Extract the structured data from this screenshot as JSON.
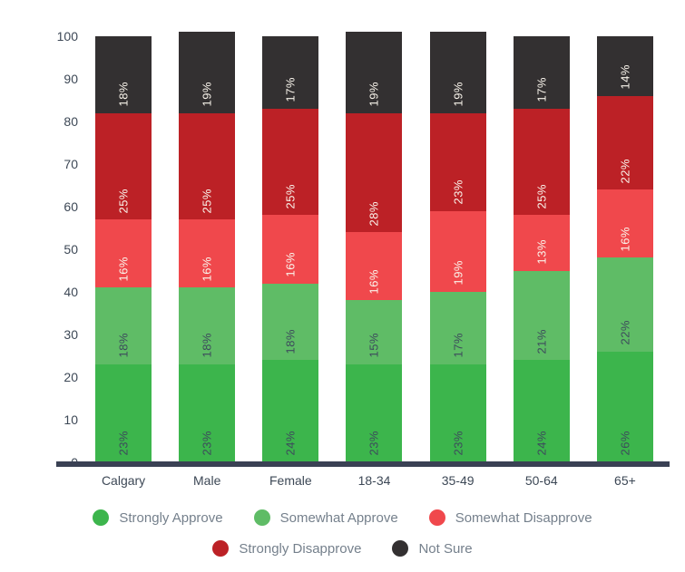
{
  "chart_data": {
    "type": "bar",
    "stacked": true,
    "title": "",
    "xlabel": "",
    "ylabel": "",
    "categories": [
      "Calgary",
      "Male",
      "Female",
      "18-34",
      "35-49",
      "50-64",
      "65+"
    ],
    "series": [
      {
        "name": "Strongly Approve",
        "color": "#3cb54c",
        "label_color": "#3d4b5c",
        "values": [
          23,
          23,
          24,
          23,
          23,
          24,
          26
        ]
      },
      {
        "name": "Somewhat Approve",
        "color": "#5fbc66",
        "label_color": "#3d4b5c",
        "values": [
          18,
          18,
          18,
          15,
          17,
          21,
          22
        ]
      },
      {
        "name": "Somewhat Disapprove",
        "color": "#f0484c",
        "label_color": "#faf5ec",
        "values": [
          16,
          16,
          16,
          16,
          19,
          13,
          16
        ]
      },
      {
        "name": "Strongly Disapprove",
        "color": "#bc2126",
        "label_color": "#faf5ec",
        "values": [
          25,
          25,
          25,
          28,
          23,
          25,
          22
        ]
      },
      {
        "name": "Not Sure",
        "color": "#333031",
        "label_color": "#faf5ec",
        "values": [
          18,
          19,
          17,
          19,
          19,
          17,
          14
        ]
      }
    ],
    "value_suffix": "%",
    "ylim": [
      0,
      100
    ],
    "yticks": [
      0,
      10,
      20,
      30,
      40,
      50,
      60,
      70,
      80,
      90,
      100
    ],
    "grid": false,
    "legend_position": "bottom",
    "legend_rows": [
      [
        "Strongly Approve",
        "Somewhat Approve",
        "Somewhat Disapprove"
      ],
      [
        "Strongly Disapprove",
        "Not Sure"
      ]
    ]
  },
  "axis": {
    "baseline_color": "#3a4154",
    "tick_color": "#3d4856",
    "category_color": "#3d4856"
  },
  "legend": {
    "text_color": "#75808c"
  }
}
